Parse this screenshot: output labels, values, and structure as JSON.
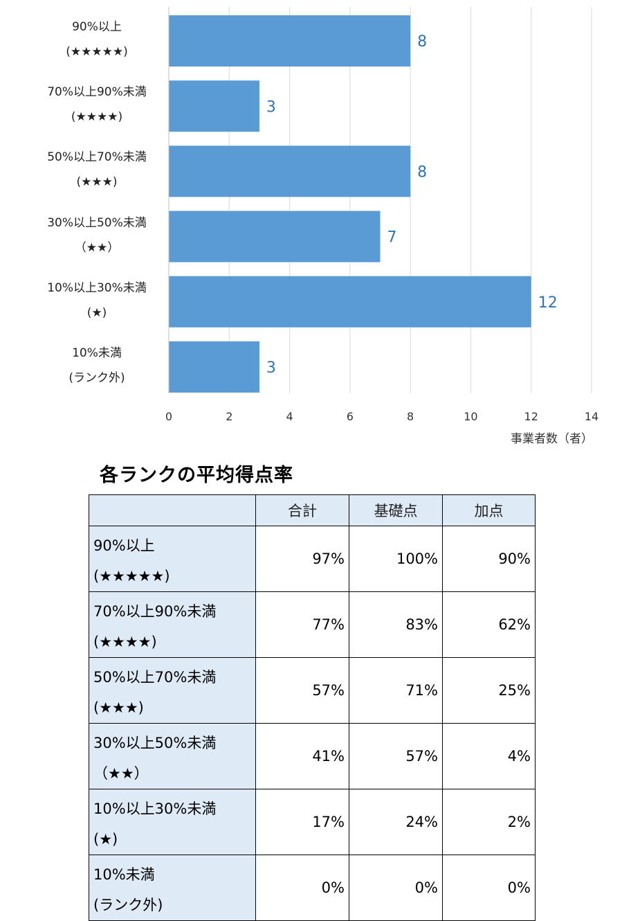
{
  "chart_data": {
    "type": "bar",
    "orientation": "horizontal",
    "categories": [
      [
        "90%以上",
        "(★★★★★)"
      ],
      [
        "70%以上90%未満",
        "(★★★★)"
      ],
      [
        "50%以上70%未満",
        "(★★★)"
      ],
      [
        "30%以上50%未満",
        "（★★）"
      ],
      [
        "10%以上30%未満",
        "(★)"
      ],
      [
        "10%未満",
        "(ランク外)"
      ]
    ],
    "values": [
      8,
      3,
      8,
      7,
      12,
      3
    ],
    "xlabel": "事業者数（者）",
    "xlim": [
      0,
      14
    ],
    "xticks": [
      0,
      2,
      4,
      6,
      8,
      10,
      12,
      14
    ],
    "grid": true,
    "bar_color": "#5b9bd5",
    "label_color": "#2e75b6"
  },
  "table": {
    "title": "各ランクの平均得点率",
    "headers": [
      "",
      "合計",
      "基礎点",
      "加点"
    ],
    "rows": [
      {
        "rank_line1": "90%以上",
        "rank_line2": "(★★★★★)",
        "total": "97%",
        "basic": "100%",
        "bonus": "90%"
      },
      {
        "rank_line1": "70%以上90%未満",
        "rank_line2": "(★★★★)",
        "total": "77%",
        "basic": "83%",
        "bonus": "62%"
      },
      {
        "rank_line1": "50%以上70%未満",
        "rank_line2": "(★★★)",
        "total": "57%",
        "basic": "71%",
        "bonus": "25%"
      },
      {
        "rank_line1": "30%以上50%未満",
        "rank_line2": "（★★）",
        "total": "41%",
        "basic": "57%",
        "bonus": "4%"
      },
      {
        "rank_line1": "10%以上30%未満",
        "rank_line2": "(★)",
        "total": "17%",
        "basic": "24%",
        "bonus": "2%"
      },
      {
        "rank_line1": "10%未満",
        "rank_line2": "(ランク外)",
        "total": "0%",
        "basic": "0%",
        "bonus": "0%"
      }
    ],
    "header_bg": "#deeaf6"
  }
}
